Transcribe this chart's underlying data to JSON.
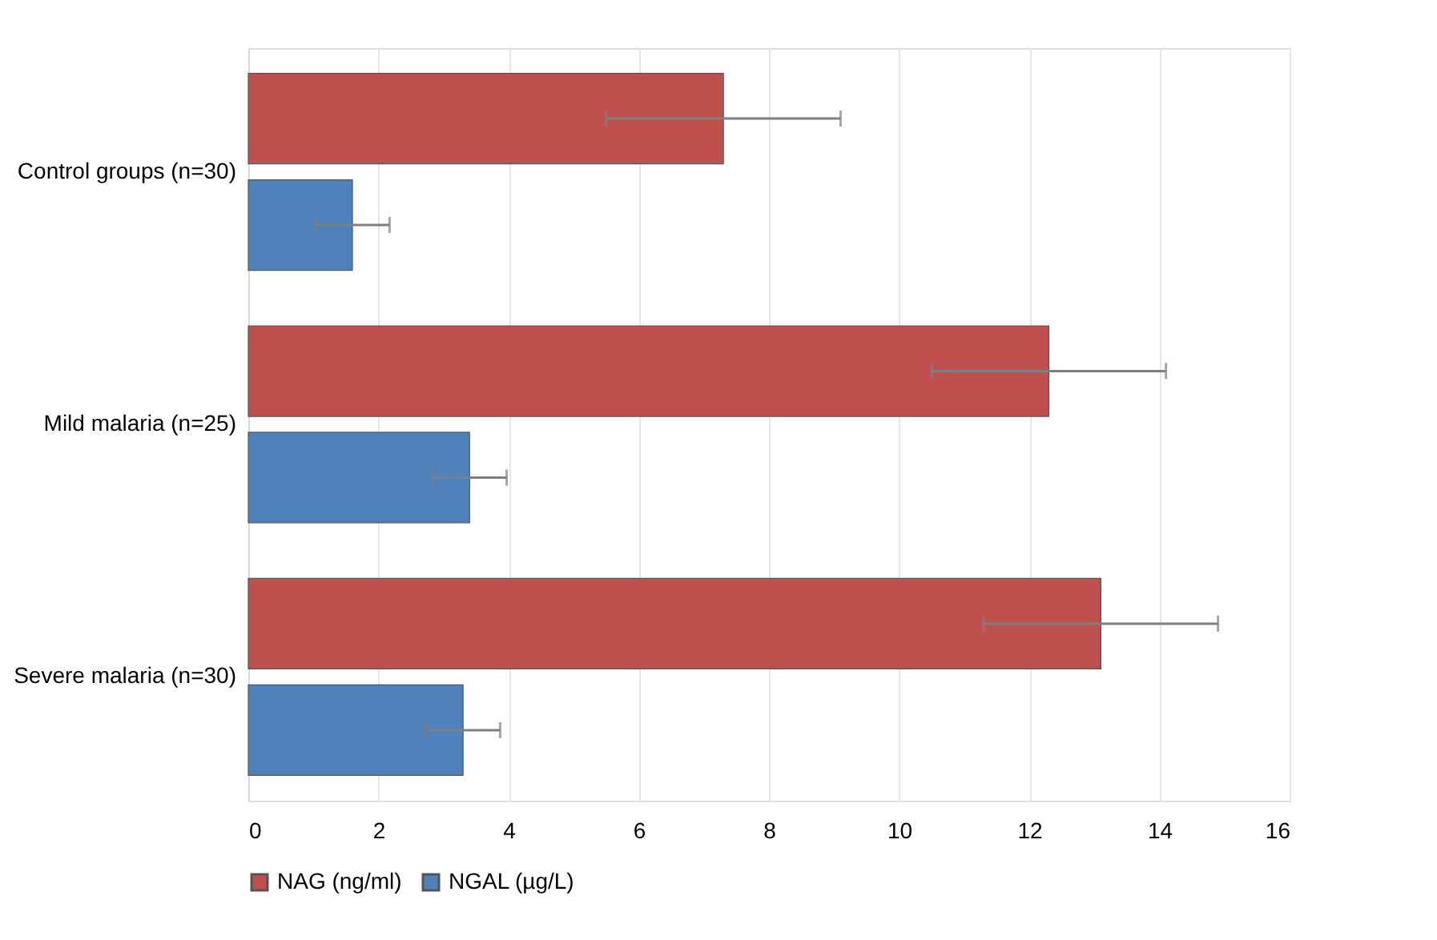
{
  "chart_data": {
    "type": "bar",
    "orientation": "horizontal",
    "categories": [
      "Control groups (n=30)",
      "Mild malaria (n=25)",
      "Severe malaria (n=30)"
    ],
    "series": [
      {
        "name": "NAG (ng/ml)",
        "color": "#c0504d",
        "values": [
          7.3,
          12.3,
          13.1
        ],
        "errors": [
          1.8,
          1.8,
          1.8
        ]
      },
      {
        "name": "NGAL (µg/L)",
        "color": "#4f81bd",
        "values": [
          1.6,
          3.4,
          3.3
        ],
        "errors": [
          0.57,
          0.57,
          0.57
        ]
      }
    ],
    "xlim": [
      0,
      16
    ],
    "xticks": [
      0,
      2,
      4,
      6,
      8,
      10,
      12,
      14,
      16
    ],
    "grid": "x",
    "legend": "bottom"
  }
}
